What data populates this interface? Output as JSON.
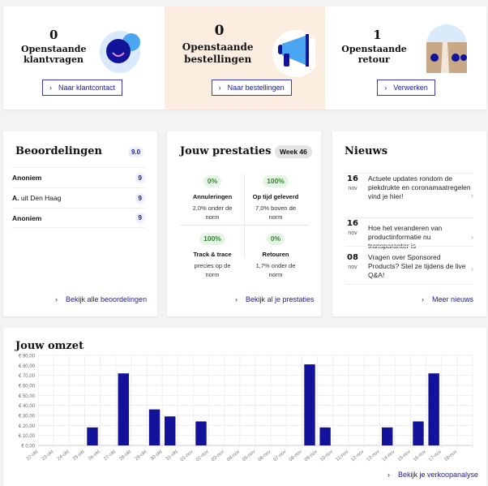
{
  "top": [
    {
      "count": "0",
      "label": "Openstaande klantvragen",
      "button": "Naar klantcontact",
      "icon": "chat-bubbles-icon"
    },
    {
      "count": "0",
      "label": "Openstaande bestellingen",
      "button": "Naar bestellingen",
      "icon": "megaphone-icon"
    },
    {
      "count": "1",
      "label": "Openstaande retour",
      "button": "Verwerken",
      "icon": "package-box-icon"
    }
  ],
  "reviews": {
    "title": "Beoordelingen",
    "score": "9.0",
    "items": [
      {
        "name": "Anoniem",
        "rest": "",
        "score": "9"
      },
      {
        "name": "A.",
        "rest": " uit Den Haag",
        "score": "9"
      },
      {
        "name": "Anoniem",
        "rest": "",
        "score": "9"
      }
    ],
    "link": "Bekijk alle beoordelingen"
  },
  "performance": {
    "title": "Jouw prestaties",
    "week": "Week 46",
    "cells": [
      {
        "pct": "0%",
        "title": "Annuleringen",
        "desc": "2,0% onder de norm"
      },
      {
        "pct": "100%",
        "title": "Op tijd geleverd",
        "desc": "7,0% boven de norm"
      },
      {
        "pct": "100%",
        "title": "Track & trace",
        "desc": "precies op de norm"
      },
      {
        "pct": "0%",
        "title": "Retouren",
        "desc": "1,7% onder de norm"
      }
    ],
    "link": "Bekijk al je prestaties"
  },
  "news": {
    "title": "Nieuws",
    "items": [
      {
        "day": "16",
        "month": "nov",
        "text": "Actuele updates rondom de piekdrukte en coronamaatregelen vind je hier!"
      },
      {
        "day": "16",
        "month": "nov",
        "text": "Hoe het veranderen van productinformatie nu transparanter is"
      },
      {
        "day": "08",
        "month": "nov",
        "text": "Vragen over Sponsored Products? Stel ze tijdens de live Q&A!"
      }
    ],
    "link": "Meer nieuws"
  },
  "revenue": {
    "title": "Jouw omzet",
    "link": "Bekijk je verkoopanalyse"
  },
  "chart_data": {
    "type": "bar",
    "title": "Jouw omzet",
    "ylim": [
      0,
      90
    ],
    "grid": true,
    "yticks": [
      "€ 0,00",
      "€ 10,00",
      "€ 20,00",
      "€ 30,00",
      "€ 40,00",
      "€ 50,00",
      "€ 60,00",
      "€ 70,00",
      "€ 80,00",
      "€ 90,00"
    ],
    "categories": [
      "22-okt",
      "23-okt",
      "24-okt",
      "25-okt",
      "26-okt",
      "27-okt",
      "28-okt",
      "29-okt",
      "30-okt",
      "31-okt",
      "01-nov",
      "02-nov",
      "03-nov",
      "04-nov",
      "05-nov",
      "06-nov",
      "07-nov",
      "08-nov",
      "09-nov",
      "10-nov",
      "11-nov",
      "12-nov",
      "13-nov",
      "14-nov",
      "15-nov",
      "16-nov",
      "17-nov",
      "18-nov"
    ],
    "values": [
      0,
      0,
      0,
      18,
      0,
      72,
      0,
      36,
      29,
      0,
      24,
      0,
      0,
      0,
      0,
      0,
      0,
      81,
      18,
      0,
      0,
      0,
      18,
      0,
      24,
      72,
      0,
      0
    ],
    "bar_color": "#12129a"
  }
}
